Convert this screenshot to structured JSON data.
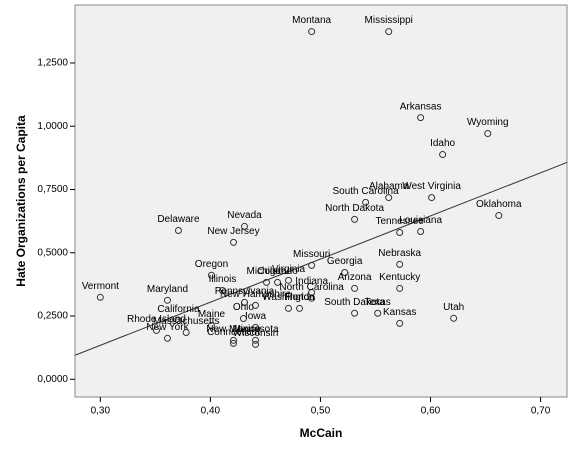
{
  "chart_data": {
    "type": "scatter",
    "x_label": "McCain",
    "y_label": "Hate Organizations per Capita",
    "xlim": [
      0.277,
      0.724
    ],
    "ylim": [
      -0.07,
      1.479
    ],
    "xticks": [
      {
        "value": 0.3,
        "label": "0,30"
      },
      {
        "value": 0.4,
        "label": "0,40"
      },
      {
        "value": 0.5,
        "label": "0,50"
      },
      {
        "value": 0.6,
        "label": "0,60"
      },
      {
        "value": 0.7,
        "label": "0,70"
      }
    ],
    "yticks": [
      {
        "value": 0,
        "label": "0,0000"
      },
      {
        "value": 0.25,
        "label": "0,2500"
      },
      {
        "value": 0.5,
        "label": "0,5000"
      },
      {
        "value": 0.75,
        "label": "0,7500"
      },
      {
        "value": 1,
        "label": "1,0000"
      },
      {
        "value": 1.25,
        "label": "1,2500"
      }
    ],
    "point_labels": [
      "Montana",
      "Mississippi",
      "Arkansas",
      "Wyoming",
      "Idaho",
      "West Virginia",
      "South Carolina",
      "Alabama",
      "North Dakota",
      "Oklahoma",
      "Tennessee",
      "Louisiana",
      "Delaware",
      "Nevada",
      "New Jersey",
      "Missouri",
      "Nebraska",
      "Georgia",
      "Kentucky",
      "Arizona",
      "Oregon",
      "Virginia",
      "Michigan",
      "Colorado",
      "Illinois",
      "Indiana",
      "North Carolina",
      "New Hampshire",
      "Pennsylvania",
      "Vermont",
      "Maryland",
      "Texas",
      "Utah",
      "Washington",
      "Florida",
      "South Dakota",
      "Kansas",
      "Maine",
      "California",
      "Rhode Island",
      "New York",
      "Massachusetts",
      "Iowa",
      "New Mexico",
      "Connecticut",
      "Wisconsin",
      "Minnesota",
      "Ohio"
    ],
    "x": [
      0.492,
      0.562,
      0.591,
      0.652,
      0.611,
      0.601,
      0.541,
      0.562,
      0.531,
      0.662,
      0.572,
      0.591,
      0.371,
      0.431,
      0.421,
      0.492,
      0.572,
      0.522,
      0.572,
      0.531,
      0.401,
      0.471,
      0.451,
      0.461,
      0.411,
      0.492,
      0.492,
      0.441,
      0.431,
      0.3,
      0.361,
      0.552,
      0.621,
      0.471,
      0.481,
      0.531,
      0.572,
      0.401,
      0.371,
      0.351,
      0.361,
      0.378,
      0.441,
      0.421,
      0.421,
      0.441,
      0.441,
      0.43
    ],
    "y": [
      1.374,
      1.374,
      1.034,
      0.971,
      0.888,
      0.718,
      0.699,
      0.718,
      0.632,
      0.647,
      0.58,
      0.584,
      0.588,
      0.604,
      0.541,
      0.45,
      0.454,
      0.422,
      0.359,
      0.359,
      0.411,
      0.391,
      0.383,
      0.383,
      0.351,
      0.343,
      0.32,
      0.292,
      0.304,
      0.324,
      0.312,
      0.261,
      0.241,
      0.28,
      0.28,
      0.261,
      0.221,
      0.213,
      0.233,
      0.193,
      0.162,
      0.185,
      0.205,
      0.154,
      0.142,
      0.138,
      0.154,
      0.24
    ],
    "color": "#333333",
    "fit_line": {
      "x": [
        0.277,
        0.724
      ],
      "y": [
        0.095,
        0.857
      ]
    }
  }
}
